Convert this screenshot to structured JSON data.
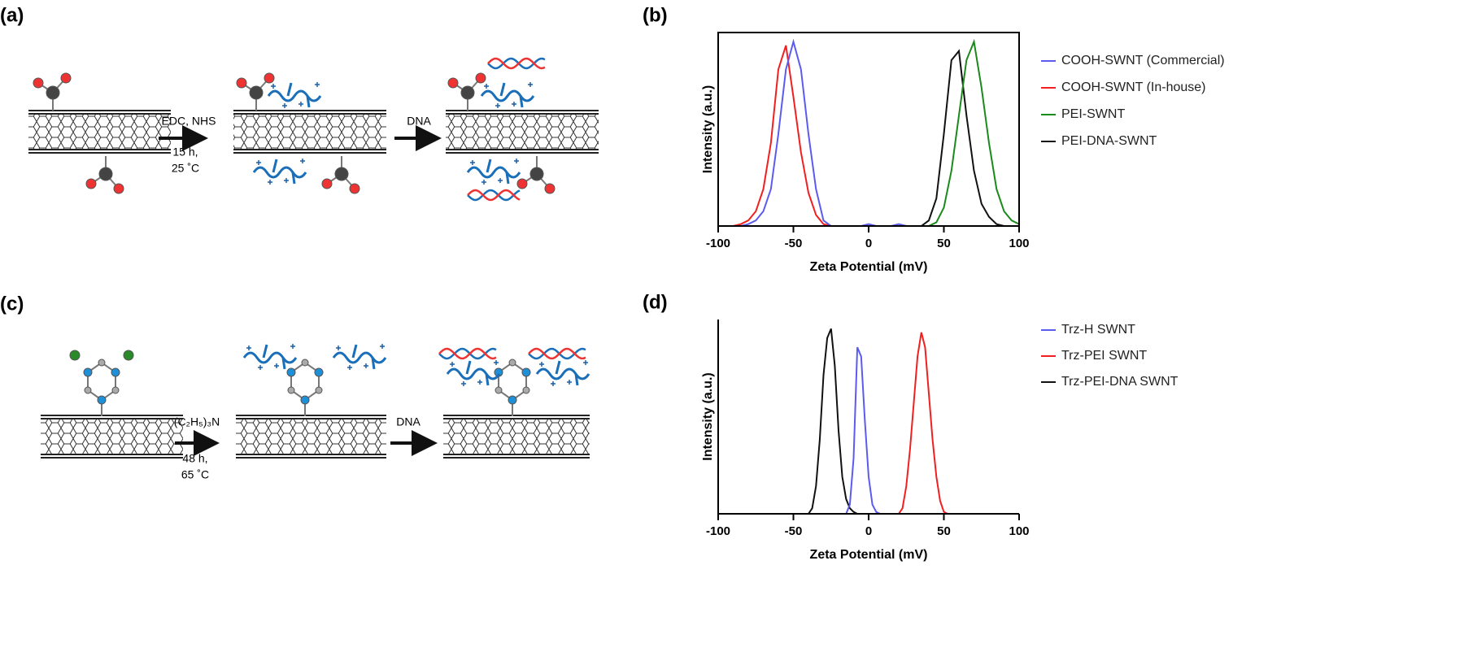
{
  "schemes": [
    {
      "label": "(a)",
      "step1": [
        "EDC, NHS",
        "15 h,",
        "25 ˚C"
      ],
      "step2": "DNA"
    },
    {
      "label": "(c)",
      "step1": [
        "(C₂H₅)₃N",
        "48 h,",
        "65 ˚C"
      ],
      "step2": "DNA"
    }
  ],
  "chart_data": [
    {
      "type": "line",
      "panel_label": "(b)",
      "xlabel": "Zeta Potential (mV)",
      "ylabel": "Intensity (a.u.)",
      "xlim": [
        -100,
        100
      ],
      "xticks": [
        -100,
        -50,
        0,
        50,
        100
      ],
      "ylim": [
        0,
        1.05
      ],
      "frame": true,
      "x": [
        -100,
        -95,
        -90,
        -85,
        -80,
        -75,
        -70,
        -65,
        -60,
        -55,
        -50,
        -45,
        -40,
        -35,
        -30,
        -25,
        -20,
        -15,
        -10,
        -5,
        0,
        5,
        10,
        15,
        20,
        25,
        30,
        35,
        40,
        45,
        50,
        55,
        60,
        65,
        70,
        75,
        80,
        85,
        90,
        95,
        100
      ],
      "series": [
        {
          "name": "COOH-SWNT (Commercial)",
          "color": "#5b5bf0",
          "values": [
            0,
            0,
            0,
            0,
            0.01,
            0.03,
            0.08,
            0.2,
            0.5,
            0.85,
            1,
            0.85,
            0.5,
            0.2,
            0.03,
            0,
            0,
            0,
            0,
            0,
            0.01,
            0,
            0,
            0,
            0.01,
            0,
            0,
            0,
            0,
            0,
            0,
            0,
            0,
            0,
            0,
            0,
            0,
            0,
            0,
            0,
            0
          ]
        },
        {
          "name": "COOH-SWNT (In-house)",
          "color": "#f02020",
          "values": [
            0,
            0,
            0,
            0.01,
            0.03,
            0.08,
            0.2,
            0.45,
            0.85,
            0.98,
            0.7,
            0.4,
            0.18,
            0.06,
            0.01,
            0,
            0,
            0,
            0,
            0,
            0,
            0,
            0,
            0,
            0,
            0,
            0,
            0,
            0,
            0,
            0,
            0,
            0,
            0,
            0,
            0,
            0,
            0,
            0,
            0,
            0
          ]
        },
        {
          "name": "PEI-SWNT",
          "color": "#1a8a1a",
          "values": [
            0,
            0,
            0,
            0,
            0,
            0,
            0,
            0,
            0,
            0,
            0,
            0,
            0,
            0,
            0,
            0,
            0,
            0,
            0,
            0,
            0,
            0,
            0,
            0,
            0,
            0,
            0,
            0,
            0,
            0.02,
            0.1,
            0.3,
            0.6,
            0.9,
            1,
            0.75,
            0.45,
            0.2,
            0.08,
            0.03,
            0.01
          ]
        },
        {
          "name": "PEI-DNA-SWNT",
          "color": "#111111",
          "values": [
            0,
            0,
            0,
            0,
            0,
            0,
            0,
            0,
            0,
            0,
            0,
            0,
            0,
            0,
            0,
            0,
            0,
            0,
            0,
            0,
            0,
            0,
            0,
            0,
            0,
            0,
            0,
            0,
            0.03,
            0.15,
            0.5,
            0.9,
            0.95,
            0.6,
            0.3,
            0.12,
            0.05,
            0.01,
            0,
            0,
            0
          ]
        }
      ]
    },
    {
      "type": "line",
      "panel_label": "(d)",
      "xlabel": "Zeta Potential (mV)",
      "ylabel": "Intensity (a.u.)",
      "xlim": [
        -100,
        100
      ],
      "xticks": [
        -100,
        -50,
        0,
        50,
        100
      ],
      "ylim": [
        0,
        1.05
      ],
      "frame": false,
      "x": [
        -100,
        -40,
        -37.5,
        -35,
        -32.5,
        -30,
        -27.5,
        -25,
        -22.5,
        -20,
        -17.5,
        -15,
        -12.5,
        -10,
        -7.5,
        -5,
        -2.5,
        0,
        2.5,
        5,
        7.5,
        20,
        22.5,
        25,
        27.5,
        30,
        32.5,
        35,
        37.5,
        40,
        42.5,
        45,
        47.5,
        50,
        52.5,
        100
      ],
      "series": [
        {
          "name": "Trz-H SWNT",
          "color": "#5b5bf0",
          "values": [
            0,
            0,
            0,
            0,
            0,
            0,
            0,
            0,
            0,
            0,
            0,
            0,
            0.05,
            0.3,
            0.9,
            0.85,
            0.5,
            0.2,
            0.05,
            0.01,
            0,
            0,
            0,
            0,
            0,
            0,
            0,
            0,
            0,
            0,
            0,
            0,
            0,
            0,
            0,
            0
          ]
        },
        {
          "name": "Trz-PEI SWNT",
          "color": "#f02020",
          "values": [
            0,
            0,
            0,
            0,
            0,
            0,
            0,
            0,
            0,
            0,
            0,
            0,
            0,
            0,
            0,
            0,
            0,
            0,
            0,
            0,
            0,
            0,
            0.03,
            0.15,
            0.35,
            0.6,
            0.85,
            0.98,
            0.9,
            0.65,
            0.4,
            0.2,
            0.07,
            0.01,
            0,
            0
          ]
        },
        {
          "name": "Trz-PEI-DNA SWNT",
          "color": "#111111",
          "values": [
            0,
            0,
            0.03,
            0.15,
            0.4,
            0.75,
            0.95,
            1,
            0.8,
            0.45,
            0.2,
            0.08,
            0.03,
            0.01,
            0,
            0,
            0,
            0,
            0,
            0,
            0,
            0,
            0,
            0,
            0,
            0,
            0,
            0,
            0,
            0,
            0,
            0,
            0,
            0,
            0,
            0
          ]
        }
      ]
    }
  ]
}
